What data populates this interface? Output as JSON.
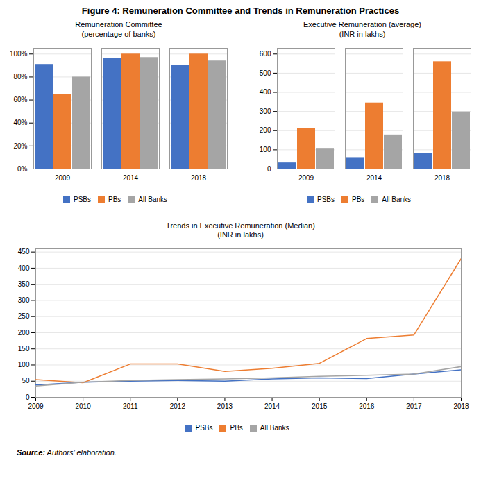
{
  "title": "Figure 4: Remuneration Committee and Trends in Remuneration Practices",
  "annotations": [
    "Source: Authors’ elaboration."
  ],
  "chart_data": [
    {
      "type": "bar",
      "title": "Remuneration Committee\n(percentage of banks)",
      "categories": [
        "2009",
        "2014",
        "2018"
      ],
      "series": [
        {
          "name": "PSBs",
          "color": "#4472C4",
          "values": [
            0.91,
            0.96,
            0.9
          ]
        },
        {
          "name": "PBs",
          "color": "#ED7D31",
          "values": [
            0.65,
            1.0,
            1.0
          ]
        },
        {
          "name": "All Banks",
          "color": "#A5A5A5",
          "values": [
            0.8,
            0.97,
            0.94
          ]
        }
      ],
      "ylim": [
        0,
        1.05
      ],
      "yticks": [
        {
          "value": 0,
          "label": "0%"
        },
        {
          "value": 0.2,
          "label": "20%"
        },
        {
          "value": 0.4,
          "label": "40%"
        },
        {
          "value": 0.6,
          "label": "60%"
        },
        {
          "value": 0.8,
          "label": "80%"
        },
        {
          "value": 1.0,
          "label": "100%"
        }
      ],
      "grid": true,
      "legend": "bottom"
    },
    {
      "type": "bar",
      "title": "Executive Remuneration (average)\n(INR in lakhs)",
      "categories": [
        "2009",
        "2014",
        "2018"
      ],
      "series": [
        {
          "name": "PSBs",
          "color": "#4472C4",
          "values": [
            32,
            60,
            82
          ]
        },
        {
          "name": "PBs",
          "color": "#ED7D31",
          "values": [
            213,
            345,
            560
          ]
        },
        {
          "name": "All Banks",
          "color": "#A5A5A5",
          "values": [
            108,
            178,
            298
          ]
        }
      ],
      "ylim": [
        0,
        630
      ],
      "yticks": [
        0,
        100,
        200,
        300,
        400,
        500,
        600
      ],
      "grid": true,
      "legend": "bottom"
    },
    {
      "type": "line",
      "title": "Trends in Executive Remuneration (Median)\n(INR in lakhs)",
      "x": [
        2009,
        2010,
        2011,
        2012,
        2013,
        2014,
        2015,
        2016,
        2017,
        2018
      ],
      "series": [
        {
          "name": "PSBs",
          "color": "#4472C4",
          "values": [
            38,
            47,
            50,
            52,
            50,
            57,
            60,
            58,
            72,
            85
          ]
        },
        {
          "name": "PBs",
          "color": "#ED7D31",
          "values": [
            55,
            45,
            103,
            103,
            80,
            90,
            105,
            182,
            193,
            430
          ]
        },
        {
          "name": "All Banks",
          "color": "#A5A5A5",
          "values": [
            35,
            47,
            52,
            55,
            57,
            60,
            65,
            68,
            72,
            95
          ]
        }
      ],
      "xlim": [
        2009,
        2018
      ],
      "xticks": [
        2009,
        2010,
        2011,
        2012,
        2013,
        2014,
        2015,
        2016,
        2017,
        2018
      ],
      "ylim": [
        0,
        460
      ],
      "yticks": [
        0,
        50,
        100,
        150,
        200,
        250,
        300,
        350,
        400,
        450
      ],
      "grid": true,
      "legend": "bottom"
    }
  ]
}
